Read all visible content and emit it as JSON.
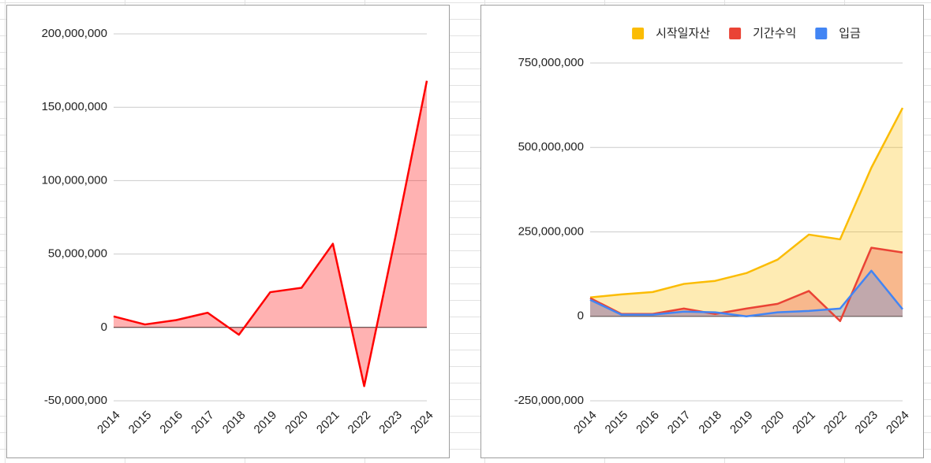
{
  "chart_data": [
    {
      "type": "area",
      "categories": [
        "2014",
        "2015",
        "2016",
        "2017",
        "2018",
        "2019",
        "2020",
        "2021",
        "2022",
        "2023",
        "2024"
      ],
      "values": [
        7500000,
        2000000,
        5000000,
        10000000,
        -5000000,
        24000000,
        27000000,
        57000000,
        -40000000,
        62000000,
        168000000
      ],
      "color": "#ff0000",
      "ylim": [
        -50000000,
        200000000
      ],
      "yticks": [
        {
          "value": -50000000,
          "label": "-50,000,000"
        },
        0,
        {
          "value": 50000000,
          "label": "50,000,000"
        },
        {
          "value": 100000000,
          "label": "100,000,000"
        },
        {
          "value": 150000000,
          "label": "150,000,000"
        },
        {
          "value": 200000000,
          "label": "200,000,000"
        }
      ],
      "grid": true
    },
    {
      "type": "area",
      "categories": [
        "2014",
        "2015",
        "2016",
        "2017",
        "2018",
        "2019",
        "2020",
        "2021",
        "2022",
        "2023",
        "2024"
      ],
      "series": [
        {
          "name": "시작일자산",
          "color": "#fbbc04",
          "values": [
            56000000,
            65000000,
            72000000,
            96000000,
            105000000,
            128000000,
            168000000,
            242000000,
            228000000,
            440000000,
            617000000
          ]
        },
        {
          "name": "기간수익",
          "color": "#ea4335",
          "values": [
            54000000,
            7000000,
            7000000,
            23000000,
            7000000,
            23000000,
            37000000,
            75000000,
            -14000000,
            203000000,
            189000000
          ]
        },
        {
          "name": "입금",
          "color": "#4285f4",
          "values": [
            49000000,
            5000000,
            5000000,
            14000000,
            12000000,
            0,
            12000000,
            16000000,
            23000000,
            135000000,
            21000000
          ]
        }
      ],
      "ylim": [
        -250000000,
        750000000
      ],
      "yticks": [
        {
          "value": -250000000,
          "label": "-250,000,000"
        },
        0,
        {
          "value": 250000000,
          "label": "250,000,000"
        },
        {
          "value": 500000000,
          "label": "500,000,000"
        },
        {
          "value": 750000000,
          "label": "750,000,000"
        }
      ],
      "grid": true,
      "legend": "top"
    }
  ]
}
